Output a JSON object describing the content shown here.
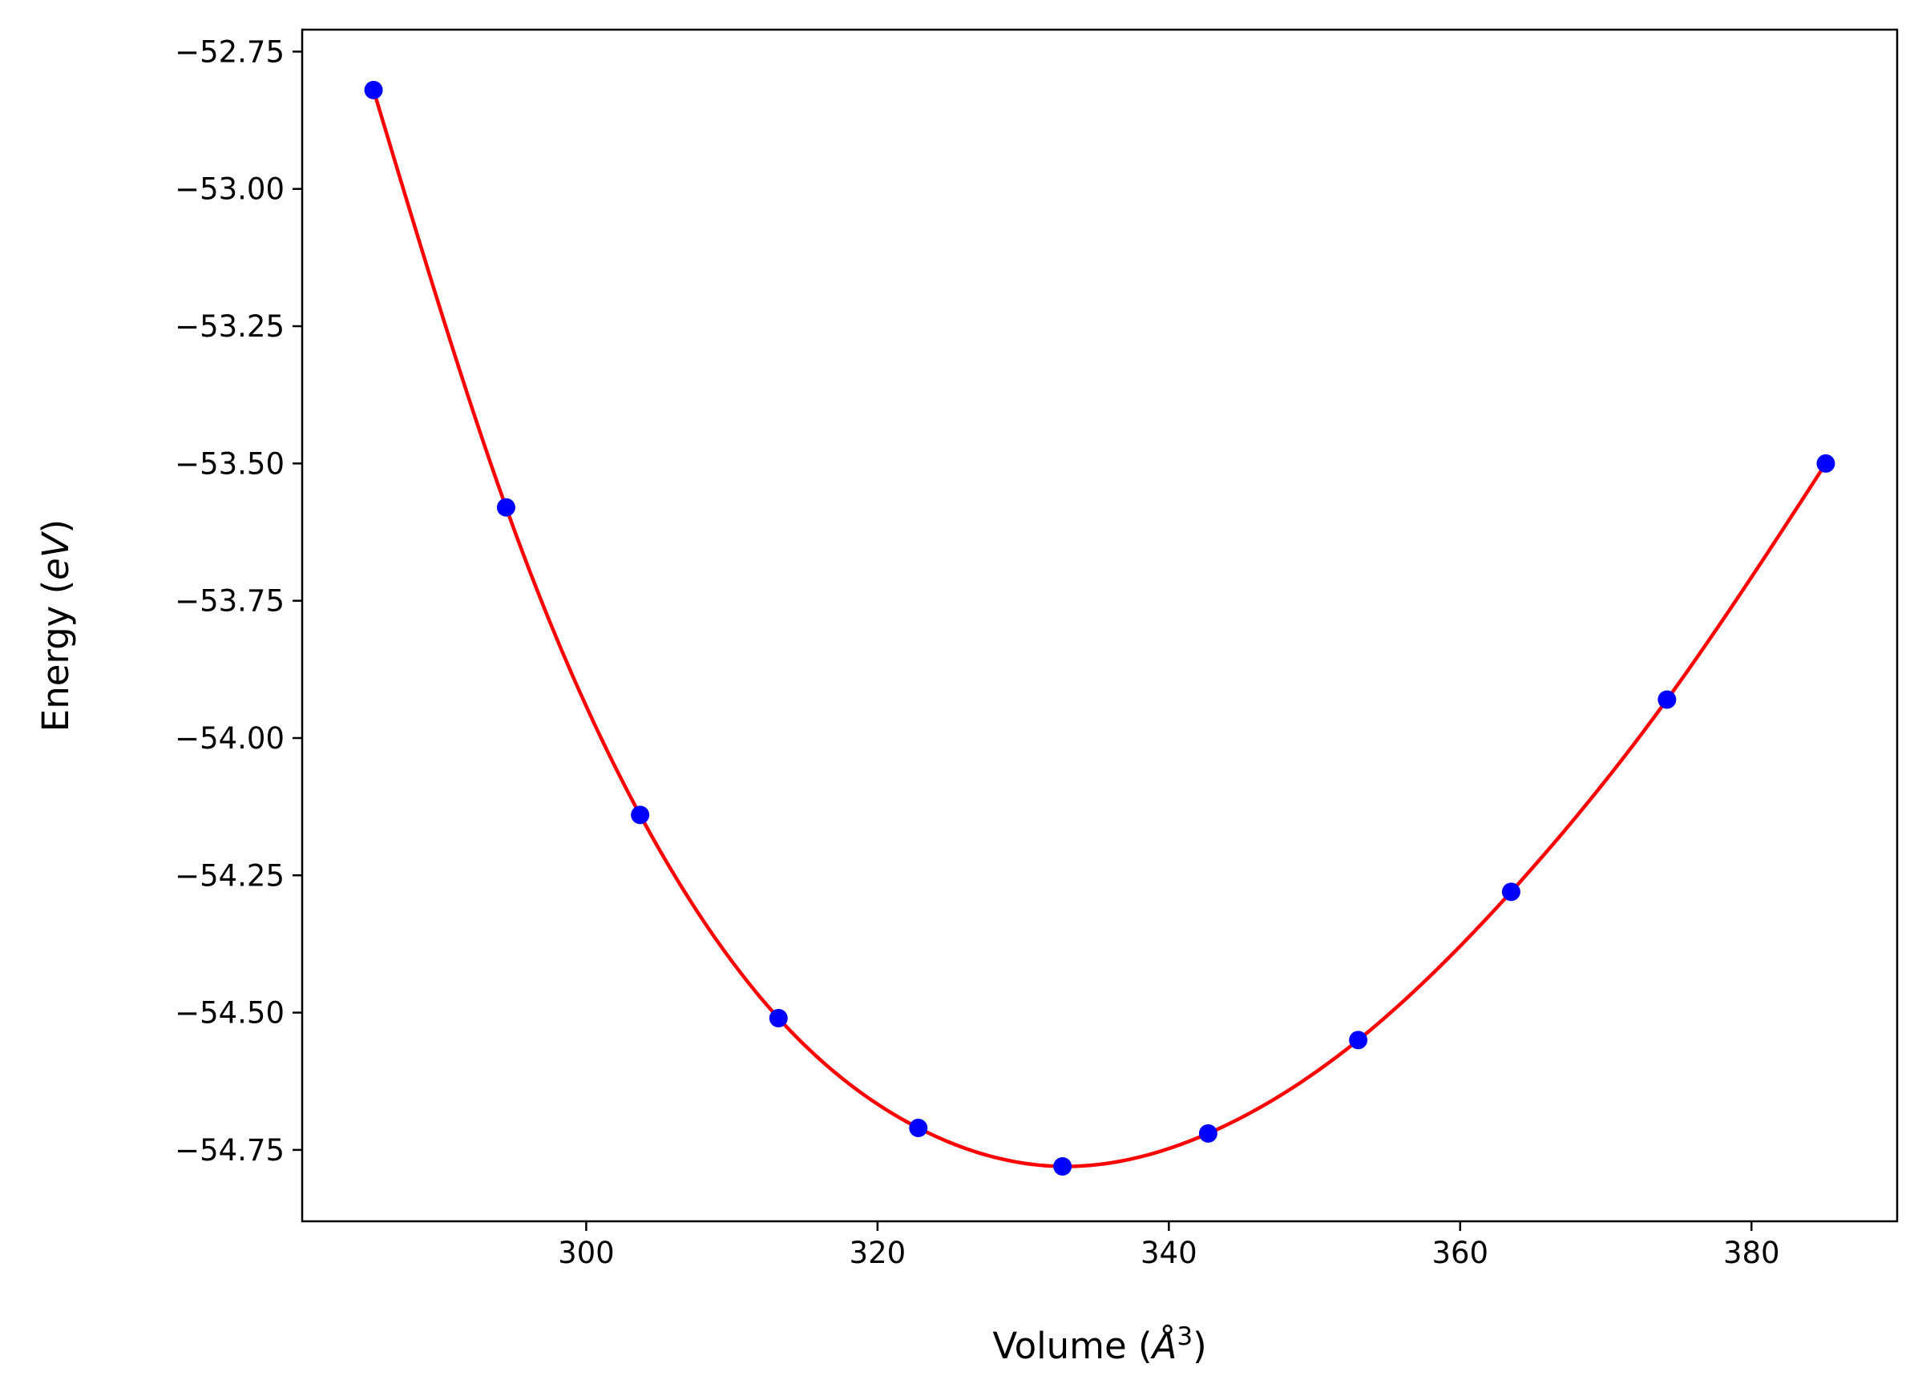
{
  "chart_data": {
    "type": "scatter",
    "title": "",
    "xlabel": "Volume",
    "xlabel_unit": "Å",
    "xlabel_exponent": "3",
    "ylabel": "Energy",
    "ylabel_unit": "eV",
    "xlim": [
      280.5,
      390
    ],
    "ylim": [
      -54.88,
      -52.71
    ],
    "x_ticks": [
      300,
      320,
      340,
      360,
      380
    ],
    "x_tick_labels": [
      "300",
      "320",
      "340",
      "360",
      "380"
    ],
    "y_ticks": [
      -52.75,
      -53.0,
      -53.25,
      -53.5,
      -53.75,
      -54.0,
      -54.25,
      -54.5,
      -54.75
    ],
    "y_tick_labels": [
      "−52.75",
      "−53.00",
      "−53.25",
      "−53.50",
      "−53.75",
      "−54.00",
      "−54.25",
      "−54.50",
      "−54.75"
    ],
    "grid": false,
    "legend": "none",
    "series": [
      {
        "kind": "points",
        "color": "#0000ff",
        "x": [
          285.4,
          294.5,
          303.7,
          313.2,
          322.8,
          332.7,
          342.7,
          353.0,
          363.5,
          374.2,
          385.1
        ],
        "y": [
          -52.82,
          -53.58,
          -54.14,
          -54.51,
          -54.71,
          -54.78,
          -54.72,
          -54.55,
          -54.28,
          -53.93,
          -53.5
        ]
      },
      {
        "kind": "fit-curve",
        "color": "#ff0000"
      }
    ]
  }
}
